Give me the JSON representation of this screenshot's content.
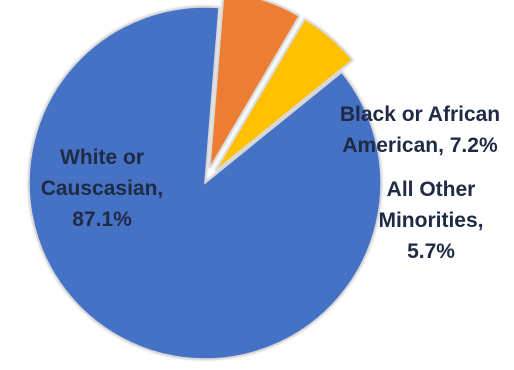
{
  "chart_data": {
    "type": "pie",
    "title": "",
    "slices": [
      {
        "label": "White or Causcasian",
        "value": 87.1,
        "label_lines": [
          "White or",
          "Causcasian,",
          "87.1%"
        ],
        "color": "#4472c4"
      },
      {
        "label": "Black or African American",
        "value": 7.2,
        "label_lines": [
          "Black or African",
          "American, 7.2%"
        ],
        "color": "#ed7d31"
      },
      {
        "label": "All Other Minorities",
        "value": 5.7,
        "label_lines": [
          "All Other",
          "Minorities,",
          "5.7%"
        ],
        "color": "#ffc000"
      }
    ],
    "legend": "none",
    "data_labels": "on-slice"
  }
}
